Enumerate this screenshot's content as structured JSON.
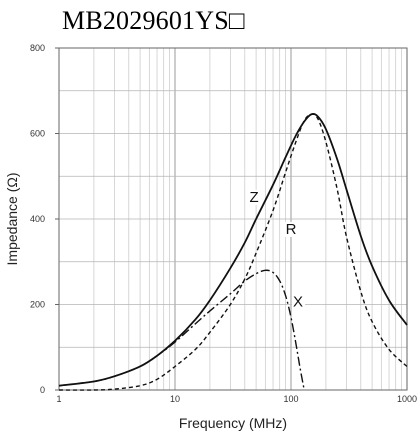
{
  "chart_data": {
    "type": "line",
    "title": "MB2029601YS□",
    "xlabel": "Frequency (MHz)",
    "ylabel": "Impedance (Ω)",
    "x_scale": "log",
    "xlim": [
      1,
      1000
    ],
    "ylim": [
      0,
      800
    ],
    "x_ticks": [
      1,
      10,
      100,
      1000
    ],
    "x_tick_labels": [
      "1",
      "10",
      "100",
      "1000"
    ],
    "y_ticks": [
      0,
      200,
      400,
      600,
      800
    ],
    "y_tick_labels": [
      "0",
      "200",
      "400",
      "600",
      "800"
    ],
    "grid": true,
    "series": [
      {
        "name": "Z",
        "style": "solid",
        "x": [
          1,
          2,
          3,
          5,
          7,
          10,
          15,
          20,
          30,
          40,
          50,
          70,
          90,
          110,
          130,
          150,
          170,
          200,
          250,
          300,
          400,
          500,
          700,
          1000
        ],
        "y": [
          10,
          20,
          32,
          55,
          80,
          115,
          165,
          210,
          285,
          345,
          400,
          480,
          545,
          595,
          628,
          645,
          640,
          610,
          540,
          470,
          360,
          290,
          210,
          152
        ]
      },
      {
        "name": "R",
        "style": "dashed",
        "x": [
          1,
          2,
          3,
          5,
          7,
          10,
          15,
          20,
          30,
          40,
          50,
          70,
          90,
          110,
          130,
          150,
          170,
          200,
          250,
          300,
          400,
          500,
          700,
          1000
        ],
        "y": [
          0,
          0,
          2,
          10,
          25,
          55,
          95,
          135,
          200,
          260,
          320,
          420,
          510,
          580,
          630,
          645,
          635,
          580,
          470,
          360,
          230,
          160,
          95,
          55
        ]
      },
      {
        "name": "X",
        "style": "dashdot",
        "x": [
          1,
          2,
          3,
          5,
          7,
          10,
          15,
          20,
          30,
          40,
          50,
          60,
          70,
          80,
          90,
          100,
          110,
          120,
          130
        ],
        "y": [
          10,
          20,
          32,
          55,
          80,
          112,
          155,
          185,
          225,
          255,
          272,
          280,
          275,
          255,
          220,
          170,
          110,
          50,
          0
        ]
      }
    ],
    "curve_labels": [
      {
        "text": "Z",
        "x": 48,
        "y": 440
      },
      {
        "text": "R",
        "x": 100,
        "y": 365
      },
      {
        "text": "X",
        "x": 115,
        "y": 195
      }
    ]
  }
}
